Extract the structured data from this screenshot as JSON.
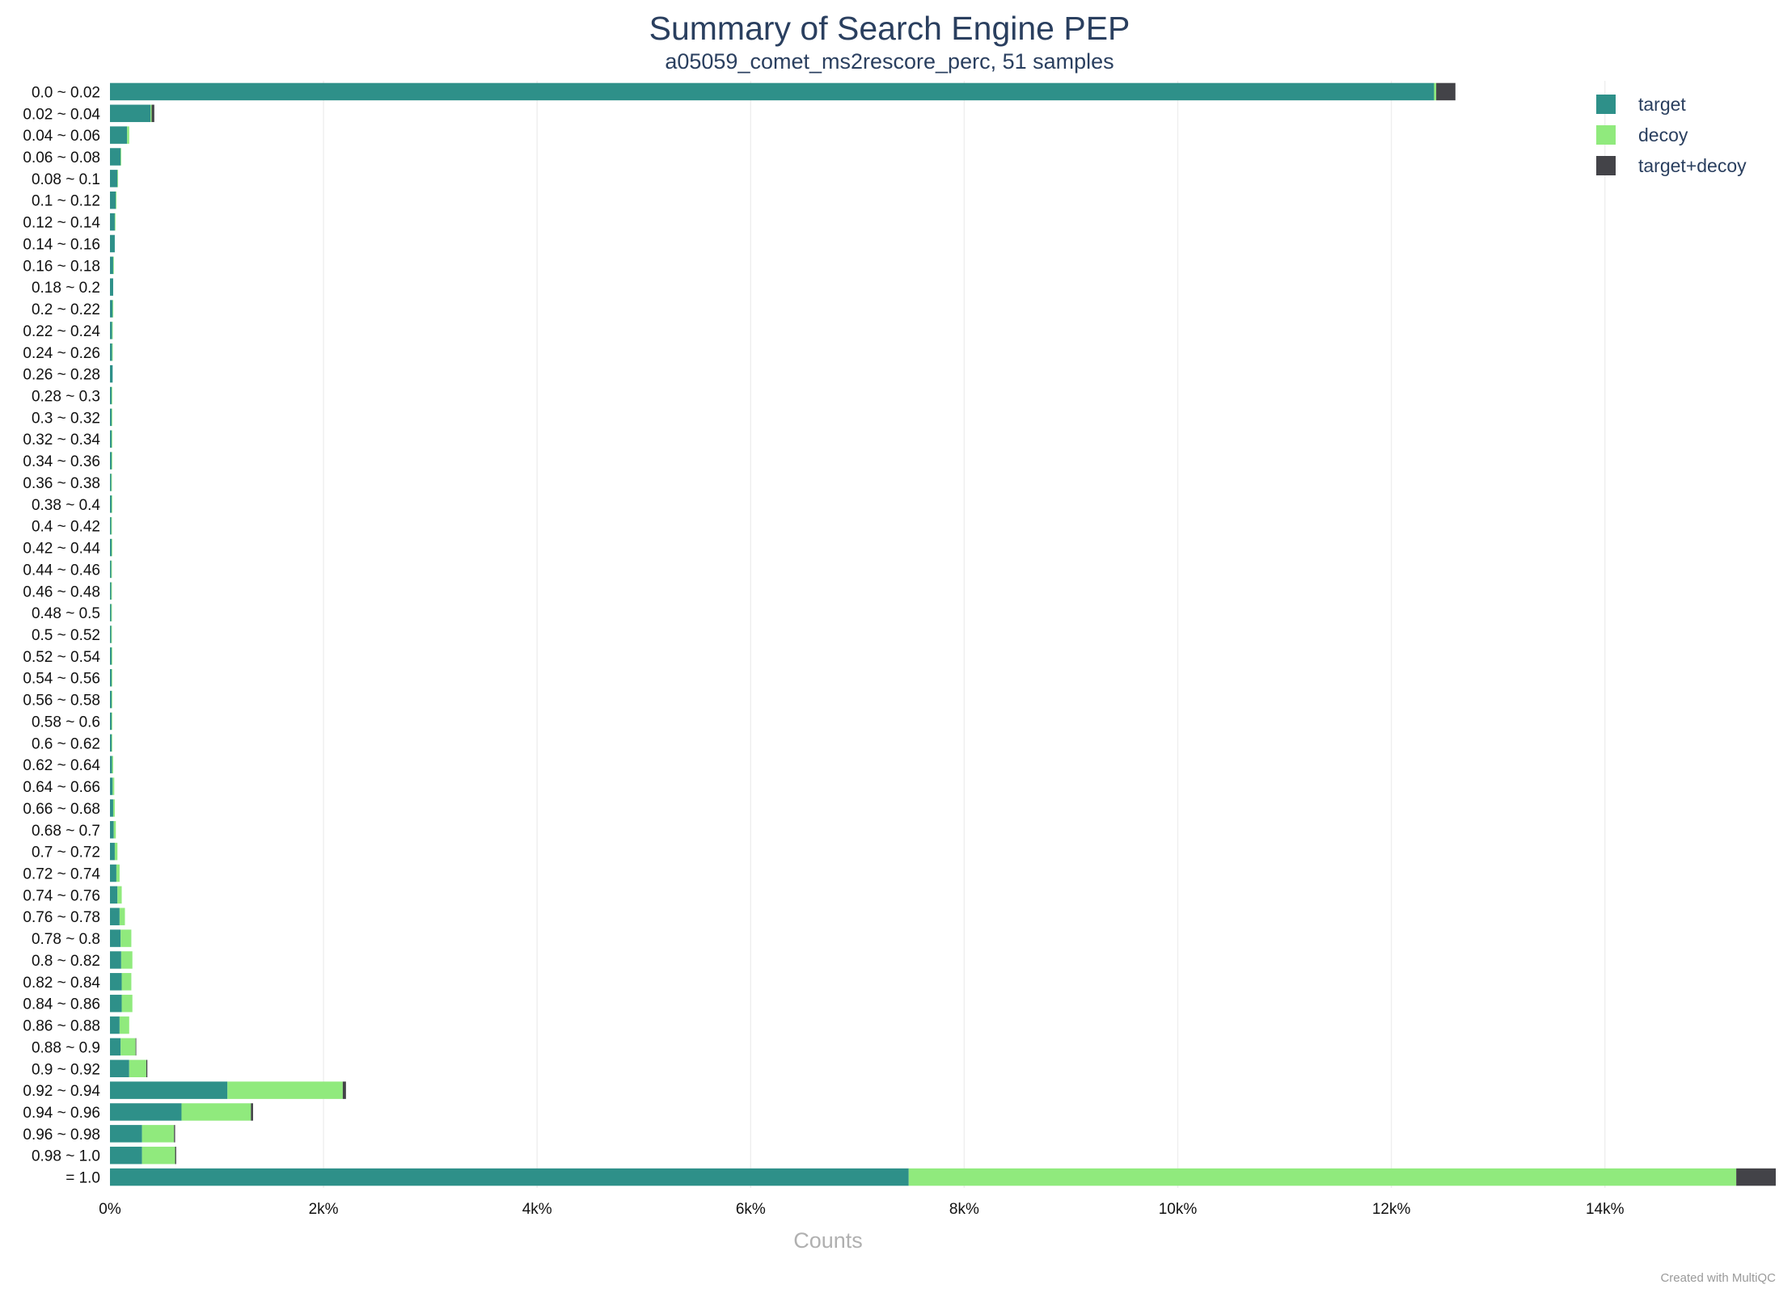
{
  "chart_data": {
    "type": "bar",
    "orientation": "horizontal",
    "stacked": true,
    "title": "Summary of Search Engine PEP",
    "subtitle": "a05059_comet_ms2rescore_perc, 51 samples",
    "xlabel": "Counts",
    "ylabel": "",
    "xlim": [
      0,
      15600
    ],
    "x_ticks": [
      0,
      2000,
      4000,
      6000,
      8000,
      10000,
      12000,
      14000
    ],
    "x_tick_labels": [
      "0%",
      "2k%",
      "4k%",
      "6k%",
      "8k%",
      "10k%",
      "12k%",
      "14k%"
    ],
    "grid": true,
    "legend_position": "top-right",
    "categories": [
      "0.0 ~ 0.02",
      "0.02 ~ 0.04",
      "0.04 ~ 0.06",
      "0.06 ~ 0.08",
      "0.08 ~ 0.1",
      "0.1 ~ 0.12",
      "0.12 ~ 0.14",
      "0.14 ~ 0.16",
      "0.16 ~ 0.18",
      "0.18 ~ 0.2",
      "0.2 ~ 0.22",
      "0.22 ~ 0.24",
      "0.24 ~ 0.26",
      "0.26 ~ 0.28",
      "0.28 ~ 0.3",
      "0.3 ~ 0.32",
      "0.32 ~ 0.34",
      "0.34 ~ 0.36",
      "0.36 ~ 0.38",
      "0.38 ~ 0.4",
      "0.4 ~ 0.42",
      "0.42 ~ 0.44",
      "0.44 ~ 0.46",
      "0.46 ~ 0.48",
      "0.48 ~ 0.5",
      "0.5 ~ 0.52",
      "0.52 ~ 0.54",
      "0.54 ~ 0.56",
      "0.56 ~ 0.58",
      "0.58 ~ 0.6",
      "0.6 ~ 0.62",
      "0.62 ~ 0.64",
      "0.64 ~ 0.66",
      "0.66 ~ 0.68",
      "0.68 ~ 0.7",
      "0.7 ~ 0.72",
      "0.72 ~ 0.74",
      "0.74 ~ 0.76",
      "0.76 ~ 0.78",
      "0.78 ~ 0.8",
      "0.8 ~ 0.82",
      "0.82 ~ 0.84",
      "0.84 ~ 0.86",
      "0.86 ~ 0.88",
      "0.88 ~ 0.9",
      "0.9 ~ 0.92",
      "0.92 ~ 0.94",
      "0.94 ~ 0.96",
      "0.96 ~ 0.98",
      "0.98 ~ 1.0",
      "= 1.0"
    ],
    "series": [
      {
        "name": "target",
        "color": "#2e9089",
        "values": [
          12400,
          380,
          160,
          100,
          70,
          55,
          45,
          45,
          30,
          30,
          25,
          20,
          20,
          25,
          15,
          15,
          15,
          15,
          12,
          15,
          12,
          15,
          12,
          12,
          12,
          12,
          15,
          15,
          15,
          15,
          15,
          20,
          25,
          30,
          35,
          45,
          60,
          70,
          90,
          100,
          105,
          110,
          110,
          90,
          100,
          180,
          1100,
          670,
          300,
          300,
          7480
        ]
      },
      {
        "name": "decoy",
        "color": "#90ea7d",
        "values": [
          20,
          10,
          20,
          5,
          5,
          5,
          5,
          0,
          5,
          0,
          5,
          5,
          5,
          0,
          5,
          5,
          5,
          5,
          5,
          5,
          5,
          5,
          5,
          5,
          5,
          5,
          5,
          5,
          5,
          5,
          5,
          10,
          15,
          15,
          20,
          25,
          30,
          40,
          50,
          100,
          105,
          90,
          100,
          90,
          140,
          160,
          1080,
          650,
          300,
          310,
          7750
        ]
      },
      {
        "name": "target+decoy",
        "color": "#434348",
        "values": [
          180,
          25,
          0,
          0,
          0,
          0,
          0,
          0,
          0,
          0,
          0,
          0,
          0,
          0,
          0,
          0,
          0,
          0,
          0,
          0,
          0,
          0,
          0,
          0,
          0,
          0,
          0,
          0,
          0,
          0,
          0,
          0,
          0,
          0,
          0,
          0,
          0,
          0,
          0,
          0,
          0,
          0,
          0,
          0,
          5,
          10,
          30,
          20,
          10,
          10,
          370
        ]
      }
    ]
  },
  "credit": "Created with MultiQC"
}
